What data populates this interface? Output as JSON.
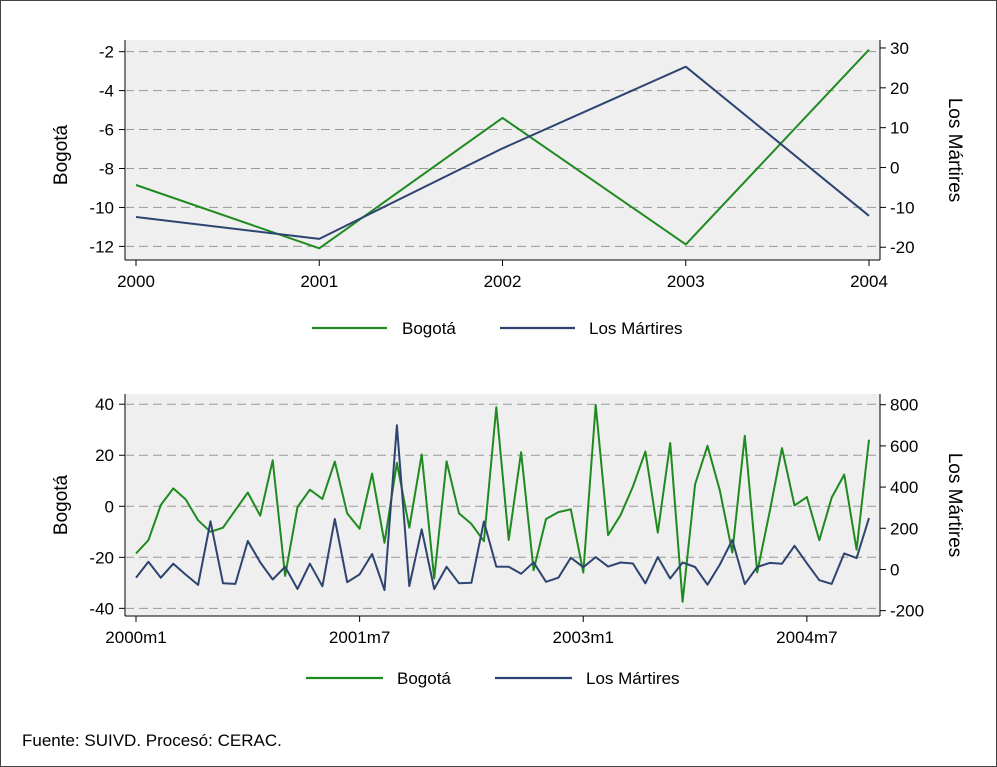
{
  "source_note": "Fuente: SUIVD. Procesó: CERAC.",
  "colors": {
    "bogota": "#1f8a1f",
    "martires": "#2e4470",
    "plot_bg": "#efefef",
    "grid": "#9a9a9a"
  },
  "chart_data": [
    {
      "type": "line",
      "ylabel_left": "Bogotá",
      "ylabel_right": "Los Mártires",
      "x": [
        2000,
        2001,
        2002,
        2003,
        2004
      ],
      "x_ticks": [
        "2000",
        "2001",
        "2002",
        "2003",
        "2004"
      ],
      "left_axis": {
        "min": -12.7,
        "max": -1.4,
        "ticks": [
          -2,
          -4,
          -6,
          -8,
          -10,
          -12
        ]
      },
      "right_axis": {
        "min": -23.2,
        "max": 32,
        "ticks": [
          30,
          20,
          10,
          0,
          -10,
          -20
        ]
      },
      "series": [
        {
          "name": "Bogotá",
          "axis": "left",
          "values": [
            -8.85,
            -12.1,
            -5.4,
            -11.9,
            -1.9
          ]
        },
        {
          "name": "Los Mártires",
          "axis": "right",
          "values": [
            -12.4,
            -17.9,
            4.8,
            25.3,
            -12.1
          ]
        }
      ],
      "legend": [
        "Bogotá",
        "Los Mártires"
      ],
      "legend_position": "bottom",
      "grid": true
    },
    {
      "type": "line",
      "ylabel_left": "Bogotá",
      "ylabel_right": "Los Mártires",
      "x_ticks": [
        "2000m1",
        "2001m7",
        "2003m1",
        "2004m7"
      ],
      "x_tick_index": [
        0,
        18,
        36,
        54
      ],
      "n_points": 60,
      "left_axis": {
        "min": -43,
        "max": 44,
        "ticks": [
          40,
          20,
          0,
          -20,
          -40
        ]
      },
      "right_axis": {
        "min": -226,
        "max": 852,
        "ticks": [
          800,
          600,
          400,
          200,
          0,
          -200
        ]
      },
      "series": [
        {
          "name": "Bogotá",
          "axis": "left",
          "values": [
            -18.5,
            -13.3,
            0.5,
            7.0,
            2.7,
            -5.5,
            -10.0,
            -8.4,
            -1.5,
            5.4,
            -3.7,
            18.0,
            -27.3,
            -0.3,
            6.5,
            2.9,
            17.5,
            -2.8,
            -8.8,
            12.8,
            -14.3,
            17.0,
            -8.4,
            20.3,
            -28.3,
            17.6,
            -2.8,
            -6.9,
            -13.7,
            38.8,
            -13.2,
            21.2,
            -25.1,
            -5.0,
            -2.3,
            -1.2,
            -26.0,
            39.7,
            -11.3,
            -3.5,
            7.7,
            21.5,
            -10.3,
            24.8,
            -37.4,
            8.6,
            23.7,
            6.1,
            -18.1,
            27.6,
            -25.9,
            -2.3,
            22.8,
            0.3,
            3.6,
            -13.3,
            3.4,
            12.4,
            -17.0,
            26.1
          ]
        },
        {
          "name": "Los Mártires",
          "axis": "right",
          "values": [
            -40,
            37,
            -40,
            28,
            -25,
            -75,
            234,
            -67,
            -70,
            138,
            35,
            -49,
            13,
            -95,
            28,
            -82,
            245,
            -62,
            -24,
            75,
            -100,
            700,
            -81,
            195,
            -95,
            13,
            -67,
            -65,
            233,
            14,
            13,
            -21,
            35,
            -60,
            -40,
            57,
            11,
            60,
            14,
            34,
            29,
            -67,
            60,
            -44,
            34,
            12,
            -74,
            24,
            143,
            -71,
            12,
            32,
            28,
            115,
            30,
            -52,
            -70,
            78,
            55,
            250
          ]
        }
      ],
      "legend": [
        "Bogotá",
        "Los Mártires"
      ],
      "legend_position": "bottom",
      "grid": true
    }
  ]
}
